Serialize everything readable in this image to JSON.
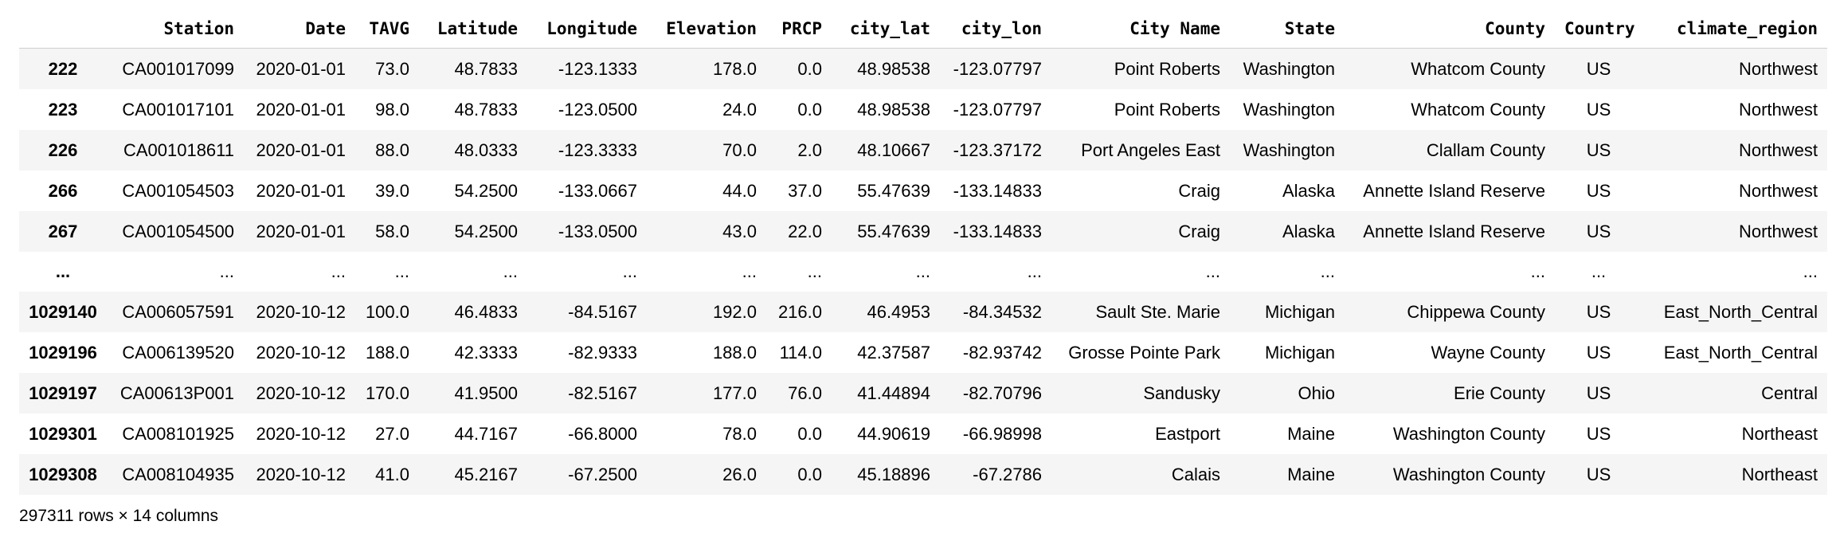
{
  "columns": [
    "",
    "Station",
    "Date",
    "TAVG",
    "Latitude",
    "Longitude",
    "Elevation",
    "PRCP",
    "city_lat",
    "city_lon",
    "City Name",
    "State",
    "County",
    "Country",
    "climate_region"
  ],
  "rows": [
    [
      "222",
      "CA001017099",
      "2020-01-01",
      "73.0",
      "48.7833",
      "-123.1333",
      "178.0",
      "0.0",
      "48.98538",
      "-123.07797",
      "Point Roberts",
      "Washington",
      "Whatcom County",
      "US",
      "Northwest"
    ],
    [
      "223",
      "CA001017101",
      "2020-01-01",
      "98.0",
      "48.7833",
      "-123.0500",
      "24.0",
      "0.0",
      "48.98538",
      "-123.07797",
      "Point Roberts",
      "Washington",
      "Whatcom County",
      "US",
      "Northwest"
    ],
    [
      "226",
      "CA001018611",
      "2020-01-01",
      "88.0",
      "48.0333",
      "-123.3333",
      "70.0",
      "2.0",
      "48.10667",
      "-123.37172",
      "Port Angeles East",
      "Washington",
      "Clallam County",
      "US",
      "Northwest"
    ],
    [
      "266",
      "CA001054503",
      "2020-01-01",
      "39.0",
      "54.2500",
      "-133.0667",
      "44.0",
      "37.0",
      "55.47639",
      "-133.14833",
      "Craig",
      "Alaska",
      "Annette Island Reserve",
      "US",
      "Northwest"
    ],
    [
      "267",
      "CA001054500",
      "2020-01-01",
      "58.0",
      "54.2500",
      "-133.0500",
      "43.0",
      "22.0",
      "55.47639",
      "-133.14833",
      "Craig",
      "Alaska",
      "Annette Island Reserve",
      "US",
      "Northwest"
    ],
    [
      "...",
      "...",
      "...",
      "...",
      "...",
      "...",
      "...",
      "...",
      "...",
      "...",
      "...",
      "...",
      "...",
      "...",
      "..."
    ],
    [
      "1029140",
      "CA006057591",
      "2020-10-12",
      "100.0",
      "46.4833",
      "-84.5167",
      "192.0",
      "216.0",
      "46.4953",
      "-84.34532",
      "Sault Ste. Marie",
      "Michigan",
      "Chippewa County",
      "US",
      "East_North_Central"
    ],
    [
      "1029196",
      "CA006139520",
      "2020-10-12",
      "188.0",
      "42.3333",
      "-82.9333",
      "188.0",
      "114.0",
      "42.37587",
      "-82.93742",
      "Grosse Pointe Park",
      "Michigan",
      "Wayne County",
      "US",
      "East_North_Central"
    ],
    [
      "1029197",
      "CA00613P001",
      "2020-10-12",
      "170.0",
      "41.9500",
      "-82.5167",
      "177.0",
      "76.0",
      "41.44894",
      "-82.70796",
      "Sandusky",
      "Ohio",
      "Erie County",
      "US",
      "Central"
    ],
    [
      "1029301",
      "CA008101925",
      "2020-10-12",
      "27.0",
      "44.7167",
      "-66.8000",
      "78.0",
      "0.0",
      "44.90619",
      "-66.98998",
      "Eastport",
      "Maine",
      "Washington County",
      "US",
      "Northeast"
    ],
    [
      "1029308",
      "CA008104935",
      "2020-10-12",
      "41.0",
      "45.2167",
      "-67.2500",
      "26.0",
      "0.0",
      "45.18896",
      "-67.2786",
      "Calais",
      "Maine",
      "Washington County",
      "US",
      "Northeast"
    ]
  ],
  "shape_caption": "297311 rows × 14 columns"
}
